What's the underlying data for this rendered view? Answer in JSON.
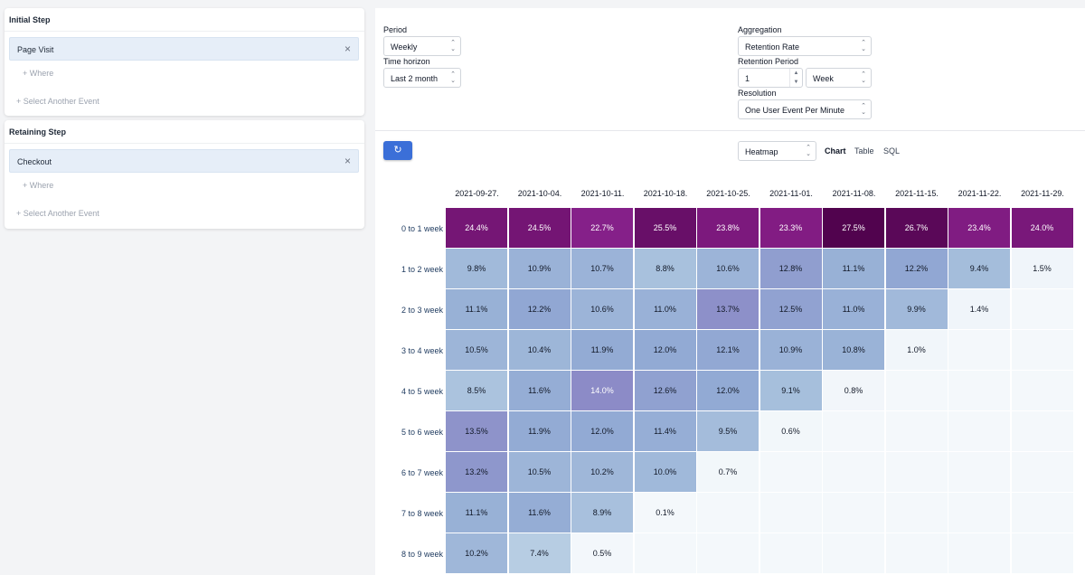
{
  "initial_step": {
    "title": "Initial Step",
    "event": "Page Visit",
    "where": "+ Where",
    "select_another": "+ Select Another Event"
  },
  "retaining_step": {
    "title": "Retaining Step",
    "event": "Checkout",
    "where": "+ Where",
    "select_another": "+ Select Another Event"
  },
  "controls": {
    "period_label": "Period",
    "period_value": "Weekly",
    "time_horizon_label": "Time horizon",
    "time_horizon_value": "Last 2 month",
    "aggregation_label": "Aggregation",
    "aggregation_value": "Retention Rate",
    "retention_period_label": "Retention Period",
    "retention_period_number": "1",
    "retention_period_unit": "Week",
    "resolution_label": "Resolution",
    "resolution_value": "One User Event Per Minute"
  },
  "view": {
    "chart_type": "Heatmap",
    "tabs": [
      "Chart",
      "Table",
      "SQL"
    ],
    "active_tab": "Chart"
  },
  "colors": {
    "accent": "#3b6fd8",
    "heat_purple_dark": "#4a0048",
    "heat_blue_light": "#f3f7fa"
  },
  "chart_data": {
    "type": "heatmap",
    "columns": [
      "2021-09-27.",
      "2021-10-04.",
      "2021-10-11.",
      "2021-10-18.",
      "2021-10-25.",
      "2021-11-01.",
      "2021-11-08.",
      "2021-11-15.",
      "2021-11-22.",
      "2021-11-29."
    ],
    "rows": [
      "0 to 1 week",
      "1 to 2 week",
      "2 to 3 week",
      "3 to 4 week",
      "4 to 5 week",
      "5 to 6 week",
      "6 to 7 week",
      "7 to 8 week",
      "8 to 9 week"
    ],
    "values": [
      [
        24.4,
        24.5,
        22.7,
        25.5,
        23.8,
        23.3,
        27.5,
        26.7,
        23.4,
        24.0
      ],
      [
        9.8,
        10.9,
        10.7,
        8.8,
        10.6,
        12.8,
        11.1,
        12.2,
        9.4,
        1.5
      ],
      [
        11.1,
        12.2,
        10.6,
        11.0,
        13.7,
        12.5,
        11.0,
        9.9,
        1.4,
        null
      ],
      [
        10.5,
        10.4,
        11.9,
        12.0,
        12.1,
        10.9,
        10.8,
        1.0,
        null,
        null
      ],
      [
        8.5,
        11.6,
        14.0,
        12.6,
        12.0,
        9.1,
        0.8,
        null,
        null,
        null
      ],
      [
        13.5,
        11.9,
        12.0,
        11.4,
        9.5,
        0.6,
        null,
        null,
        null,
        null
      ],
      [
        13.2,
        10.5,
        10.2,
        10.0,
        0.7,
        null,
        null,
        null,
        null,
        null
      ],
      [
        11.1,
        11.6,
        8.9,
        0.1,
        null,
        null,
        null,
        null,
        null,
        null
      ],
      [
        10.2,
        7.4,
        0.5,
        null,
        null,
        null,
        null,
        null,
        null,
        null
      ]
    ],
    "value_suffix": "%"
  }
}
